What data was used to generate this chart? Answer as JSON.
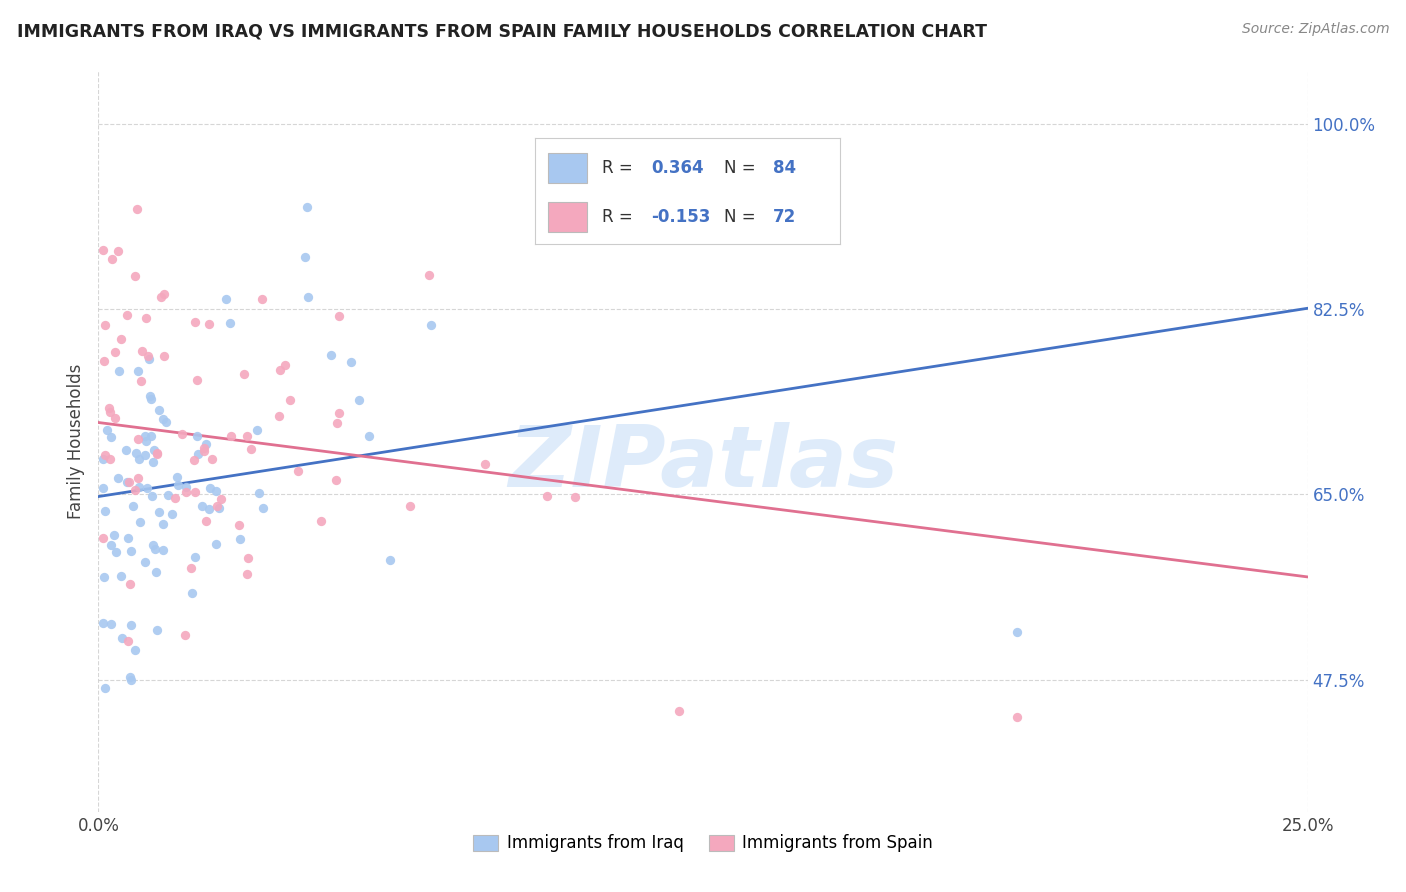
{
  "title": "IMMIGRANTS FROM IRAQ VS IMMIGRANTS FROM SPAIN FAMILY HOUSEHOLDS CORRELATION CHART",
  "source": "Source: ZipAtlas.com",
  "ylabel": "Family Households",
  "y_tick_labels": [
    "47.5%",
    "65.0%",
    "82.5%",
    "100.0%"
  ],
  "y_tick_values": [
    0.475,
    0.65,
    0.825,
    1.0
  ],
  "x_min": 0.0,
  "x_max": 0.25,
  "y_min": 0.35,
  "y_max": 1.05,
  "iraq_color": "#a8c8f0",
  "spain_color": "#f4a8be",
  "iraq_line_color": "#4472c4",
  "spain_line_color": "#e07090",
  "iraq_R": 0.364,
  "iraq_N": 84,
  "spain_R": -0.153,
  "spain_N": 72,
  "iraq_line_x0": 0.0,
  "iraq_line_y0": 0.648,
  "iraq_line_x1": 0.25,
  "iraq_line_y1": 0.826,
  "spain_line_x0": 0.0,
  "spain_line_y0": 0.718,
  "spain_line_x1": 0.25,
  "spain_line_y1": 0.572,
  "legend_label_iraq": "Immigrants from Iraq",
  "legend_label_spain": "Immigrants from Spain",
  "background_color": "#ffffff",
  "watermark_text": "ZIPatlas",
  "watermark_color": "#c8dff8",
  "watermark_alpha": 0.6
}
